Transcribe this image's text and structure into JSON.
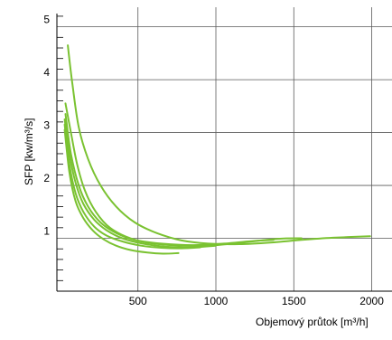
{
  "chart_data": {
    "type": "line",
    "title": "",
    "xlabel": "Objemový průtok [m³/h]",
    "ylabel": "SFP [kw/m³/s]",
    "xlim": [
      -20,
      2130
    ],
    "ylim": [
      0,
      5.25
    ],
    "x_ticks": [
      500,
      1000,
      1500,
      2000
    ],
    "x_tick_labels": [
      "500",
      "1000",
      "1500",
      "2000"
    ],
    "y_ticks": [
      1,
      2,
      3,
      4,
      5
    ],
    "y_tick_labels": [
      "1",
      "2",
      "3",
      "4",
      "5"
    ],
    "grid": true,
    "legend": "none",
    "line_color": "#7ac231",
    "series": [
      {
        "points": [
          [
            50,
            4.65
          ],
          [
            80,
            3.9
          ],
          [
            120,
            3.1
          ],
          [
            180,
            2.5
          ],
          [
            260,
            2.0
          ],
          [
            360,
            1.6
          ],
          [
            480,
            1.3
          ],
          [
            620,
            1.1
          ],
          [
            780,
            0.96
          ],
          [
            950,
            0.9
          ],
          [
            1150,
            0.89
          ],
          [
            1350,
            0.92
          ],
          [
            1550,
            0.97
          ],
          [
            1750,
            1.01
          ],
          [
            1990,
            1.04
          ]
        ]
      },
      {
        "points": [
          [
            35,
            3.55
          ],
          [
            70,
            3.0
          ],
          [
            110,
            2.4
          ],
          [
            160,
            1.9
          ],
          [
            230,
            1.5
          ],
          [
            320,
            1.2
          ],
          [
            450,
            1.0
          ],
          [
            600,
            0.9
          ],
          [
            800,
            0.86
          ],
          [
            1000,
            0.87
          ],
          [
            1200,
            0.93
          ],
          [
            1400,
            0.99
          ],
          [
            1550,
            1.0
          ]
        ]
      },
      {
        "points": [
          [
            35,
            3.35
          ],
          [
            70,
            2.6
          ],
          [
            120,
            2.0
          ],
          [
            180,
            1.6
          ],
          [
            260,
            1.3
          ],
          [
            360,
            1.1
          ],
          [
            480,
            0.97
          ],
          [
            650,
            0.9
          ],
          [
            850,
            0.87
          ],
          [
            1050,
            0.9
          ],
          [
            1250,
            0.95
          ],
          [
            1370,
            0.97
          ]
        ]
      },
      {
        "points": [
          [
            30,
            3.25
          ],
          [
            60,
            2.6
          ],
          [
            100,
            2.05
          ],
          [
            150,
            1.65
          ],
          [
            220,
            1.35
          ],
          [
            300,
            1.15
          ],
          [
            400,
            1.0
          ],
          [
            530,
            0.9
          ],
          [
            680,
            0.84
          ],
          [
            850,
            0.83
          ],
          [
            1000,
            0.86
          ]
        ]
      },
      {
        "points": [
          [
            30,
            3.15
          ],
          [
            60,
            2.4
          ],
          [
            100,
            1.85
          ],
          [
            150,
            1.5
          ],
          [
            220,
            1.22
          ],
          [
            300,
            1.05
          ],
          [
            400,
            0.94
          ],
          [
            520,
            0.86
          ],
          [
            650,
            0.82
          ],
          [
            780,
            0.81
          ],
          [
            900,
            0.83
          ]
        ]
      },
      {
        "points": [
          [
            30,
            3.05
          ],
          [
            60,
            2.25
          ],
          [
            100,
            1.7
          ],
          [
            150,
            1.38
          ],
          [
            210,
            1.15
          ],
          [
            280,
            0.98
          ],
          [
            360,
            0.86
          ],
          [
            450,
            0.78
          ],
          [
            560,
            0.73
          ],
          [
            660,
            0.71
          ],
          [
            760,
            0.72
          ]
        ]
      }
    ]
  }
}
